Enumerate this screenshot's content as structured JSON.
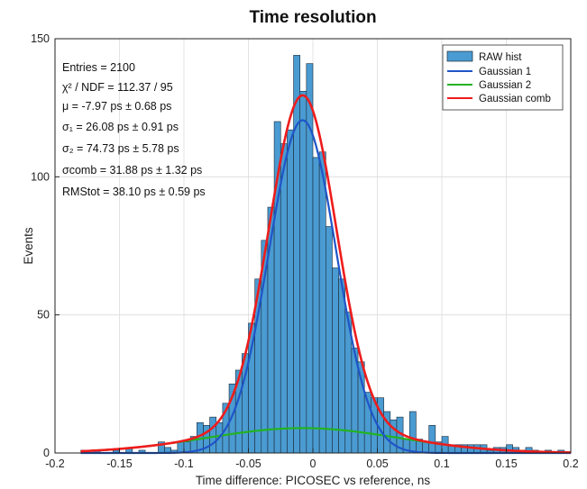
{
  "chart_data": {
    "type": "bar",
    "title": "Time resolution",
    "xlabel": "Time difference: PICOSEC vs reference, ns",
    "ylabel": "Events",
    "xlim": [
      -0.2,
      0.2
    ],
    "ylim": [
      0,
      150
    ],
    "xticks": [
      "-0.2",
      "-0.15",
      "-0.1",
      "-0.05",
      "0",
      "0.05",
      "0.1",
      "0.15",
      "0.2"
    ],
    "yticks": [
      "0",
      "50",
      "100",
      "150"
    ],
    "grid": true,
    "legend_position": "top-right",
    "stats": {
      "entries": "Entries = 2100",
      "chi2": "χ² / NDF = 112.37 / 95",
      "mu": "μ = -7.97 ps ± 0.68 ps",
      "sigma1": "σ₁ = 26.08 ps ± 0.91 ps",
      "sigma2": "σ₂ = 74.73 ps ± 5.78 ps",
      "sigma_comb": "σcomb = 31.88 ps ± 1.32 ps",
      "rms_tot": "RMStot = 38.10 ps ± 0.59 ps"
    },
    "histogram": {
      "name": "RAW hist",
      "color": "#4a9bd1",
      "bin_width": 0.005,
      "bin_centers": [
        -0.1775,
        -0.1675,
        -0.1525,
        -0.1425,
        -0.1325,
        -0.1175,
        -0.1125,
        -0.1075,
        -0.1025,
        -0.0975,
        -0.0925,
        -0.0875,
        -0.0825,
        -0.0775,
        -0.0725,
        -0.0675,
        -0.0625,
        -0.0575,
        -0.0525,
        -0.0475,
        -0.0425,
        -0.0375,
        -0.0325,
        -0.0275,
        -0.0225,
        -0.0175,
        -0.0125,
        -0.0075,
        -0.0025,
        0.0025,
        0.0075,
        0.0125,
        0.0175,
        0.0225,
        0.0275,
        0.0325,
        0.0375,
        0.0425,
        0.0475,
        0.0525,
        0.0575,
        0.0625,
        0.0675,
        0.0725,
        0.0775,
        0.0825,
        0.0875,
        0.0925,
        0.0975,
        0.1025,
        0.1075,
        0.1125,
        0.1175,
        0.1225,
        0.1275,
        0.1325,
        0.1375,
        0.1425,
        0.1475,
        0.1525,
        0.1575,
        0.1625,
        0.1675,
        0.1725,
        0.1825,
        0.1925
      ],
      "counts": [
        1,
        1,
        1,
        2,
        1,
        4,
        2,
        1,
        4,
        4,
        6,
        11,
        10,
        13,
        11,
        18,
        25,
        30,
        36,
        47,
        63,
        77,
        89,
        120,
        112,
        117,
        144,
        131,
        141,
        107,
        109,
        82,
        67,
        63,
        51,
        38,
        33,
        22,
        20,
        20,
        15,
        12,
        13,
        5,
        15,
        5,
        4,
        10,
        4,
        6,
        3,
        3,
        3,
        3,
        3,
        3,
        1,
        2,
        2,
        3,
        2,
        1,
        2,
        1,
        1,
        1
      ]
    },
    "series": [
      {
        "name": "Gaussian 1",
        "color": "#1f55c8",
        "model": "gaussian",
        "amplitude": 120.5,
        "mean": -0.00797,
        "sigma": 0.02608
      },
      {
        "name": "Gaussian 2",
        "color": "#22b322",
        "model": "gaussian",
        "amplitude": 9,
        "mean": -0.00797,
        "sigma": 0.07473
      },
      {
        "name": "Gaussian comb",
        "color": "#ee1c1c",
        "model": "sum",
        "components": [
          "Gaussian 1",
          "Gaussian 2"
        ]
      }
    ]
  }
}
